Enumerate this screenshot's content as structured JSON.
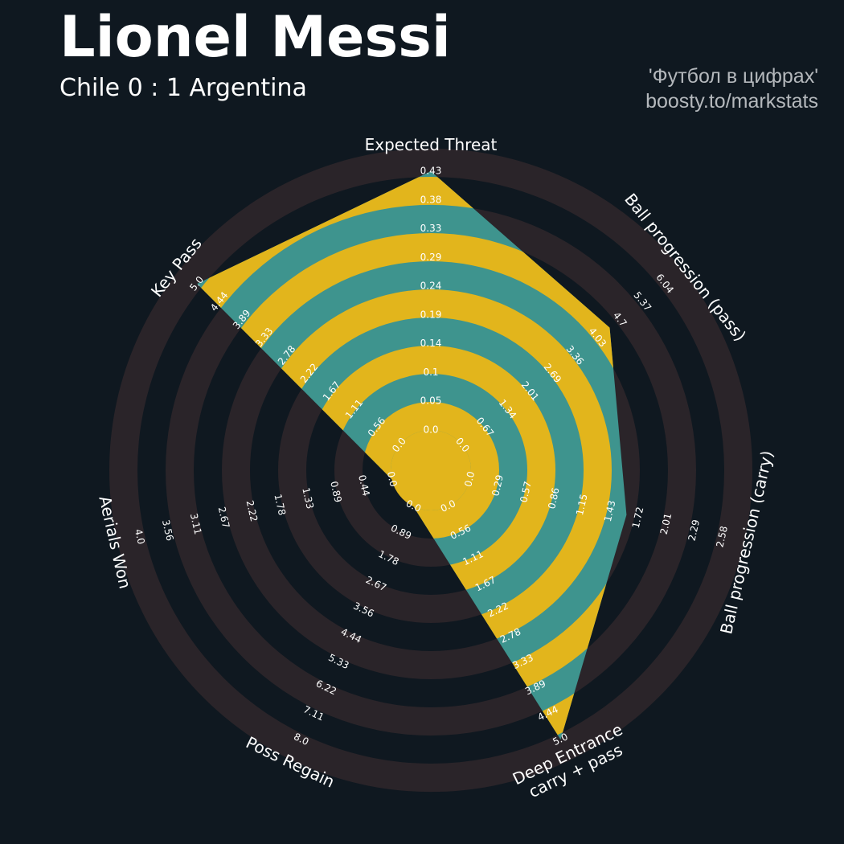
{
  "header": {
    "title": "Lionel Messi",
    "subtitle": "Chile 0 : 1 Argentina",
    "credit_line1": "'Футбол в цифрах'",
    "credit_line2": "boosty.to/markstats"
  },
  "colors": {
    "background": "#0f1820",
    "ring_dark": "#2a2429",
    "fill_teal": "#3e948e",
    "fill_gold": "#e2b51c",
    "label_text": "#ffffff"
  },
  "chart_data": {
    "type": "radar",
    "grid": "concentric alternating bands",
    "legend": "none",
    "axes": [
      {
        "label": "Expected Threat",
        "min": 0,
        "max": 0.43,
        "value": 0.43,
        "ticks": [
          "0.0",
          "0.05",
          "0.1",
          "0.14",
          "0.19",
          "0.24",
          "0.29",
          "0.33",
          "0.38",
          "0.43"
        ]
      },
      {
        "label": "Ball progression (pass)",
        "min": 0,
        "max": 6.04,
        "value": 4.4,
        "ticks": [
          "0.0",
          "0.67",
          "1.34",
          "2.01",
          "2.69",
          "3.36",
          "4.03",
          "4.7",
          "5.37",
          "6.04"
        ]
      },
      {
        "label": "Ball progression (carry)",
        "min": 0,
        "max": 2.58,
        "value": 1.6,
        "ticks": [
          "0.0",
          "0.29",
          "0.57",
          "0.86",
          "1.15",
          "1.43",
          "1.72",
          "2.01",
          "2.29",
          "2.58"
        ]
      },
      {
        "label": "Deep Entrance\ncarry + pass",
        "min": 0,
        "max": 5.0,
        "value": 5.0,
        "ticks": [
          "0.0",
          "0.56",
          "1.11",
          "1.67",
          "2.22",
          "2.78",
          "3.33",
          "3.89",
          "4.44",
          "5.0"
        ]
      },
      {
        "label": "Poss Regain",
        "min": 0,
        "max": 8.0,
        "value": 0,
        "ticks": [
          "0.0",
          "0.89",
          "1.78",
          "2.67",
          "3.56",
          "4.44",
          "5.33",
          "6.22",
          "7.11",
          "8.0"
        ]
      },
      {
        "label": "Aerials Won",
        "min": 0,
        "max": 4.0,
        "value": 0,
        "ticks": [
          "0.0",
          "0.44",
          "0.89",
          "1.33",
          "1.78",
          "2.22",
          "2.67",
          "3.11",
          "3.56",
          "4.0"
        ]
      },
      {
        "label": "Key Pass",
        "min": 0,
        "max": 5.0,
        "value": 5.0,
        "ticks": [
          "0.0",
          "0.56",
          "1.11",
          "1.67",
          "2.22",
          "2.78",
          "3.33",
          "3.89",
          "4.44",
          "5.0"
        ]
      }
    ]
  }
}
